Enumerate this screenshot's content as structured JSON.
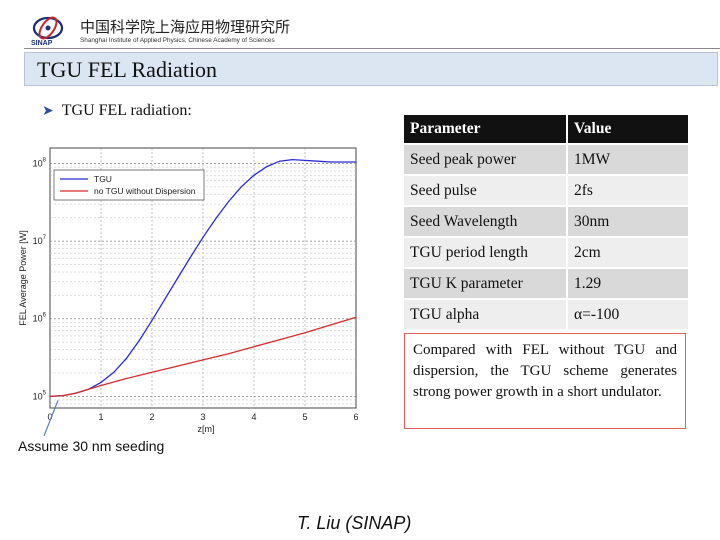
{
  "header": {
    "institute_cn": "中国科学院上海应用物理研究所",
    "institute_en": "Shanghai Institute of Applied Physics, Chinese Academy of Sciences",
    "logo_text": "SINAP",
    "accent_color": "#1a2f78"
  },
  "slide": {
    "title": "TGU FEL Radiation",
    "bullet": "TGU FEL radiation:",
    "assume": "Assume 30 nm seeding",
    "author": "T. Liu (SINAP)"
  },
  "table": {
    "headers": [
      "Parameter",
      "Value"
    ],
    "rows": [
      [
        "Seed peak power",
        "1MW"
      ],
      [
        "Seed pulse",
        "2fs"
      ],
      [
        "Seed Wavelength",
        "30nm"
      ],
      [
        "TGU period length",
        "2cm"
      ],
      [
        "TGU K parameter",
        "1.29"
      ],
      [
        "TGU alpha",
        "α=-100"
      ]
    ]
  },
  "note": "Compared with FEL without TGU and dispersion, the TGU scheme generates strong power growth in a short undulator.",
  "chart_data": {
    "type": "line",
    "xlabel": "z[m]",
    "ylabel": "FEL Average Power [W]",
    "xlim": [
      0,
      6
    ],
    "ylim_log10": [
      4.85,
      8.2
    ],
    "y_scale": "log",
    "grid": true,
    "legend_position": "top-left",
    "x_ticks": [
      "0",
      "1",
      "2",
      "3",
      "4",
      "5",
      "6"
    ],
    "y_ticks": [
      {
        "base": "10",
        "exp": "5",
        "log": 5
      },
      {
        "base": "10",
        "exp": "6",
        "log": 6
      },
      {
        "base": "10",
        "exp": "7",
        "log": 7
      },
      {
        "base": "10",
        "exp": "8",
        "log": 8
      }
    ],
    "series": [
      {
        "name": "TGU",
        "color": "#2b2bd6",
        "x": [
          0,
          0.25,
          0.5,
          0.75,
          1.0,
          1.25,
          1.5,
          1.75,
          2.0,
          2.25,
          2.5,
          2.75,
          3.0,
          3.25,
          3.5,
          3.75,
          4.0,
          4.25,
          4.5,
          4.75,
          5.0,
          5.25,
          5.5,
          6.0
        ],
        "y_log10": [
          5.0,
          5.01,
          5.04,
          5.09,
          5.18,
          5.31,
          5.49,
          5.72,
          5.98,
          6.25,
          6.52,
          6.79,
          7.05,
          7.29,
          7.51,
          7.7,
          7.85,
          7.96,
          8.03,
          8.05,
          8.04,
          8.03,
          8.02,
          8.02
        ]
      },
      {
        "name": "no TGU without Dispersion",
        "color": "#d62b2b",
        "x": [
          0,
          0.25,
          0.5,
          0.75,
          1.0,
          1.5,
          2.0,
          2.5,
          3.0,
          3.5,
          4.0,
          4.5,
          5.0,
          5.5,
          6.0
        ],
        "y_log10": [
          5.0,
          5.01,
          5.04,
          5.09,
          5.14,
          5.23,
          5.31,
          5.39,
          5.47,
          5.55,
          5.64,
          5.73,
          5.82,
          5.92,
          6.02
        ]
      }
    ]
  }
}
